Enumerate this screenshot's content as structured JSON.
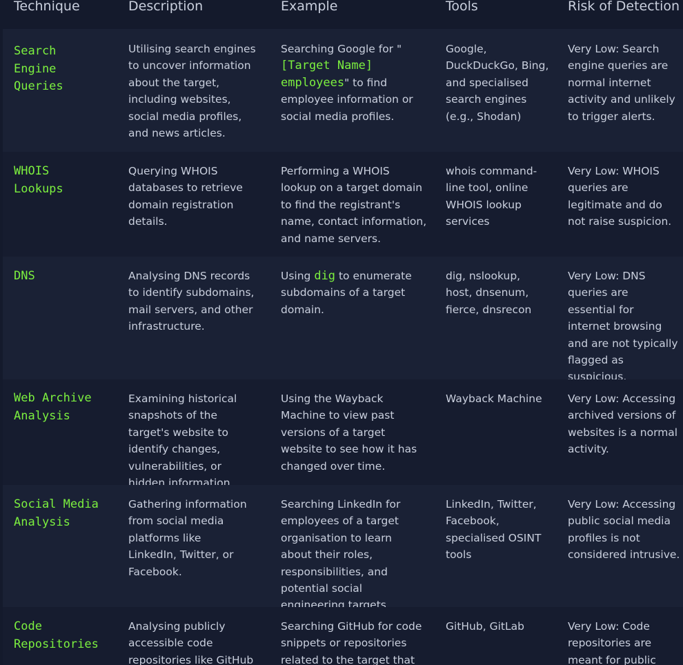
{
  "table": {
    "headers": [
      "Technique",
      "Description",
      "Example",
      "Tools",
      "Risk of Detection"
    ],
    "rows": [
      {
        "technique": "Search Engine Queries",
        "description": "Utilising search engines to uncover information about the target, including websites, social media profiles, and news articles.",
        "example_pre": "Searching Google for \"",
        "example_code": "[Target Name] employees",
        "example_post": "\" to find employee information or social media profiles.",
        "tools": "Google, DuckDuckGo, Bing, and specialised search engines (e.g., Shodan)",
        "risk": "Very Low: Search engine queries are normal internet activity and unlikely to trigger alerts."
      },
      {
        "technique": "WHOIS Lookups",
        "description": "Querying WHOIS databases to retrieve domain registration details.",
        "example": "Performing a WHOIS lookup on a target domain to find the registrant's name, contact information, and name servers.",
        "tools": "whois command-line tool, online WHOIS lookup services",
        "risk": "Very Low: WHOIS queries are legitimate and do not raise suspicion."
      },
      {
        "technique": "DNS",
        "description": "Analysing DNS records to identify subdomains, mail servers, and other infrastructure.",
        "example_pre": "Using ",
        "example_code": "dig",
        "example_post": " to enumerate subdomains of a target domain.",
        "tools": "dig, nslookup, host, dnsenum, fierce, dnsrecon",
        "risk": "Very Low: DNS queries are essential for internet browsing and are not typically flagged as suspicious."
      },
      {
        "technique": "Web Archive Analysis",
        "description": "Examining historical snapshots of the target's website to identify changes, vulnerabilities, or hidden information.",
        "example": "Using the Wayback Machine to view past versions of a target website to see how it has changed over time.",
        "tools": "Wayback Machine",
        "risk": "Very Low: Accessing archived versions of websites is a normal activity."
      },
      {
        "technique": "Social Media Analysis",
        "description": "Gathering information from social media platforms like LinkedIn, Twitter, or Facebook.",
        "example": "Searching LinkedIn for employees of a target organisation to learn about their roles, responsibilities, and potential social engineering targets.",
        "tools": "LinkedIn, Twitter, Facebook, specialised OSINT tools",
        "risk": "Very Low: Accessing public social media profiles is not considered intrusive."
      },
      {
        "technique": "Code Repositories",
        "description": "Analysing publicly accessible code repositories like GitHub",
        "example": "Searching GitHub for code snippets or repositories related to the target that",
        "tools": "GitHub, GitLab",
        "risk": "Very Low: Code repositories are meant for public"
      }
    ]
  }
}
